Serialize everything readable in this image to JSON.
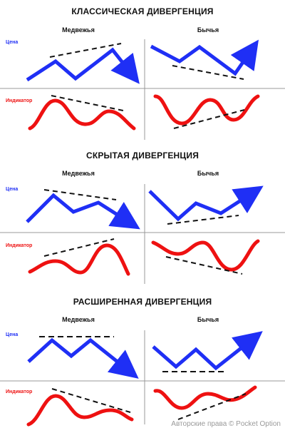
{
  "sections": [
    {
      "title": "КЛАССИЧЕСКАЯ ДИВЕРГЕНЦИЯ",
      "bearish": "Медвежья",
      "bullish": "Бычья",
      "price_label": "Цена",
      "indicator_label": "Индикатор"
    },
    {
      "title": "СКРЫТАЯ ДИВЕРГЕНЦИЯ",
      "bearish": "Медвежья",
      "bullish": "Бычья",
      "price_label": "Цена",
      "indicator_label": "Индикатор"
    },
    {
      "title": "РАСШИРЕННАЯ ДИВЕРГЕНЦИЯ",
      "bearish": "Медвежья",
      "bullish": "Бычья",
      "price_label": "Цена",
      "indicator_label": "Индикатор"
    }
  ],
  "colors": {
    "price": "#1f2ff5",
    "indicator": "#ee1111",
    "trendline": "#111111",
    "divider": "#999999"
  },
  "watermark": "Авторские права © Pocket Option"
}
